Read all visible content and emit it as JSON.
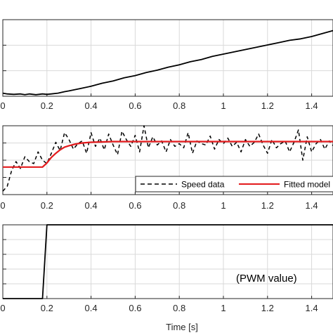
{
  "chart_data": [
    {
      "type": "line",
      "name": "position-plot",
      "xlim": [
        0,
        1.6
      ],
      "ylim": [
        0,
        1
      ],
      "grid": true,
      "xticks": [
        0,
        0.2,
        0.4,
        0.6,
        0.8,
        1,
        1.2,
        1.4
      ],
      "xtick_labels": [
        "0",
        "0.2",
        "0.4",
        "0.6",
        "0.8",
        "1",
        "1.2",
        "1.4"
      ],
      "series": [
        {
          "style": "solid",
          "color": "#000000",
          "x": [
            0.0,
            0.02,
            0.05,
            0.08,
            0.1,
            0.12,
            0.15,
            0.18,
            0.2,
            0.22,
            0.25,
            0.28,
            0.3,
            0.35,
            0.4,
            0.45,
            0.5,
            0.55,
            0.6,
            0.65,
            0.7,
            0.75,
            0.8,
            0.85,
            0.9,
            0.95,
            1.0,
            1.05,
            1.1,
            1.15,
            1.2,
            1.25,
            1.3,
            1.35,
            1.4,
            1.45,
            1.5,
            1.55,
            1.6
          ],
          "y": [
            0.04,
            0.03,
            0.025,
            0.03,
            0.02,
            0.03,
            0.02,
            0.03,
            0.025,
            0.03,
            0.04,
            0.06,
            0.07,
            0.1,
            0.13,
            0.17,
            0.2,
            0.24,
            0.27,
            0.31,
            0.34,
            0.38,
            0.41,
            0.45,
            0.48,
            0.52,
            0.55,
            0.58,
            0.61,
            0.64,
            0.67,
            0.7,
            0.73,
            0.75,
            0.78,
            0.82,
            0.86,
            0.9,
            0.95
          ]
        }
      ]
    },
    {
      "type": "line",
      "name": "speed-plot",
      "xlim": [
        0,
        1.6
      ],
      "ylim": [
        0,
        1
      ],
      "grid": true,
      "xticks": [
        0,
        0.2,
        0.4,
        0.6,
        0.8,
        1,
        1.2,
        1.4
      ],
      "xtick_labels": [
        "0",
        "0.2",
        "0.4",
        "0.6",
        "0.8",
        "1",
        "1.2",
        "1.4"
      ],
      "legend": {
        "position": "bottom-right",
        "entries": [
          "Speed data",
          "Fitted model"
        ]
      },
      "series": [
        {
          "name": "Speed data",
          "style": "dashed",
          "color": "#000000",
          "x": [
            0.0,
            0.02,
            0.04,
            0.06,
            0.08,
            0.1,
            0.12,
            0.14,
            0.16,
            0.18,
            0.2,
            0.22,
            0.24,
            0.26,
            0.28,
            0.3,
            0.32,
            0.34,
            0.36,
            0.38,
            0.4,
            0.42,
            0.44,
            0.46,
            0.48,
            0.5,
            0.52,
            0.54,
            0.56,
            0.58,
            0.6,
            0.62,
            0.64,
            0.66,
            0.68,
            0.7,
            0.72,
            0.74,
            0.76,
            0.78,
            0.8,
            0.82,
            0.84,
            0.86,
            0.88,
            0.9,
            0.92,
            0.94,
            0.96,
            0.98,
            1.0,
            1.02,
            1.04,
            1.06,
            1.08,
            1.1,
            1.12,
            1.14,
            1.16,
            1.18,
            1.2,
            1.22,
            1.24,
            1.26,
            1.28,
            1.3,
            1.32,
            1.34,
            1.36,
            1.38,
            1.4,
            1.42,
            1.44,
            1.46,
            1.48,
            1.5,
            1.52,
            1.54,
            1.56,
            1.58,
            1.6
          ],
          "y": [
            0.05,
            0.12,
            0.35,
            0.48,
            0.38,
            0.55,
            0.48,
            0.45,
            0.62,
            0.5,
            0.45,
            0.6,
            0.76,
            0.64,
            0.9,
            0.8,
            0.66,
            0.74,
            0.78,
            0.6,
            0.9,
            0.7,
            0.82,
            0.65,
            0.88,
            0.72,
            0.58,
            0.92,
            0.8,
            0.7,
            0.86,
            0.62,
            1.0,
            0.68,
            0.84,
            0.72,
            0.78,
            0.62,
            0.8,
            0.7,
            0.74,
            0.68,
            0.9,
            0.6,
            0.78,
            0.74,
            0.72,
            0.85,
            0.66,
            0.8,
            0.74,
            0.82,
            0.7,
            0.76,
            0.62,
            0.8,
            0.7,
            0.76,
            0.88,
            0.72,
            0.6,
            0.8,
            0.68,
            0.74,
            0.78,
            0.62,
            0.76,
            0.94,
            0.5,
            0.84,
            0.62,
            0.74,
            0.8,
            0.66,
            0.78,
            0.7,
            0.76,
            0.8,
            0.72,
            0.76,
            0.74
          ]
        },
        {
          "name": "Fitted model",
          "style": "solid",
          "color": "#e31a1c",
          "x": [
            0.0,
            0.18,
            0.2,
            0.22,
            0.24,
            0.26,
            0.28,
            0.3,
            0.33,
            0.36,
            0.4,
            0.45,
            0.5,
            0.6,
            0.8,
            1.0,
            1.2,
            1.4,
            1.6
          ],
          "y": [
            0.4,
            0.4,
            0.46,
            0.54,
            0.6,
            0.65,
            0.69,
            0.71,
            0.735,
            0.75,
            0.76,
            0.765,
            0.77,
            0.77,
            0.77,
            0.77,
            0.77,
            0.77,
            0.77
          ]
        }
      ]
    },
    {
      "type": "line",
      "name": "pwm-plot",
      "xlim": [
        0,
        1.6
      ],
      "ylim": [
        0,
        1
      ],
      "grid": true,
      "xticks": [
        0,
        0.2,
        0.4,
        0.6,
        0.8,
        1,
        1.2,
        1.4
      ],
      "xtick_labels": [
        "0",
        "0.2",
        "0.4",
        "0.6",
        "0.8",
        "1",
        "1.2",
        "1.4"
      ],
      "xlabel": "Time [s]",
      "annotation": "(PWM value)",
      "series": [
        {
          "style": "solid",
          "color": "#000000",
          "x": [
            0.0,
            0.18,
            0.2,
            1.6
          ],
          "y": [
            0.0,
            0.0,
            1.0,
            1.0
          ]
        }
      ]
    }
  ]
}
